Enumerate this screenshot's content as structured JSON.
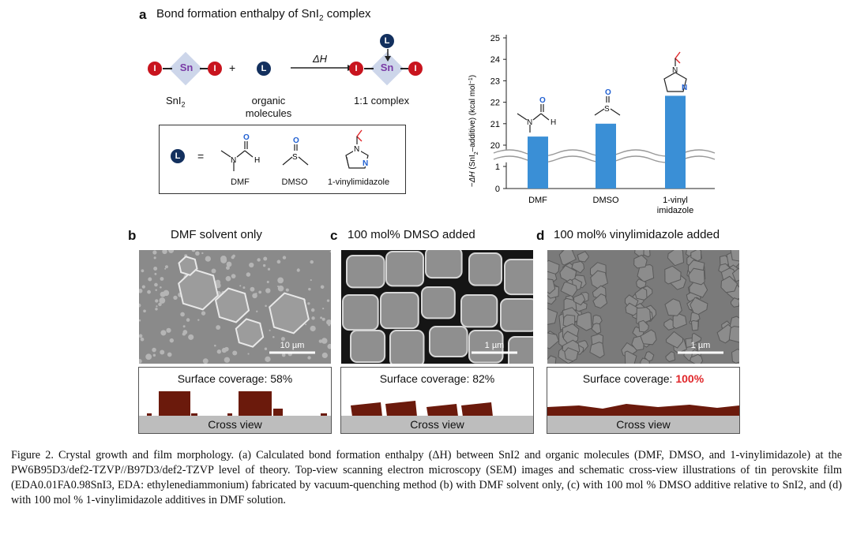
{
  "panel_a": {
    "letter": "a",
    "title": "Bond formation enthalpy of SnI",
    "title_sub": "2",
    "title_after": " complex",
    "scheme": {
      "atom_I": "I",
      "atom_Sn": "Sn",
      "atom_L": "L",
      "plus": "+",
      "arrow_label": "ΔH",
      "snI2_label": "SnI",
      "snI2_sub": "2",
      "organic_label_1": "organic",
      "organic_label_2": "molecules",
      "complex_label": "1:1 complex",
      "equals": "=",
      "mol_dmf": "DMF",
      "mol_dmso": "DMSO",
      "mol_vinyl": "1-vinylimidazole",
      "atom_O": "O",
      "atom_S": "S",
      "atom_N": "N",
      "atom_H": "H"
    }
  },
  "chart_data": {
    "type": "bar",
    "categories": [
      "DMF",
      "DMSO",
      "1-vinyl imidazole"
    ],
    "category_lines": [
      [
        "DMF"
      ],
      [
        "DMSO"
      ],
      [
        "1-vinyl",
        "imidazole"
      ]
    ],
    "values": [
      20.4,
      21.0,
      22.3
    ],
    "ylabel": "−ΔH (SnI2–additive) (kcal mol⁻¹)",
    "ylabel_parts": [
      "−",
      "ΔH",
      " (SnI",
      "2",
      "–additive) (kcal mol",
      "−1",
      ")"
    ],
    "yticks_upper": [
      20,
      21,
      22,
      23,
      24,
      25
    ],
    "yticks_lower": [
      0,
      1
    ],
    "axis_break": true,
    "bar_color": "#3a8fd6"
  },
  "panels": [
    {
      "letter": "b",
      "title": "DMF solvent only",
      "scale": "10 µm",
      "coverage_label": "Surface coverage: ",
      "coverage_value": "58%",
      "coverage_color": "#111111",
      "cross": "Cross view"
    },
    {
      "letter": "c",
      "title": "100 mol% DMSO added",
      "scale": "1 µm",
      "coverage_label": "Surface coverage: ",
      "coverage_value": "82%",
      "coverage_color": "#111111",
      "cross": "Cross view"
    },
    {
      "letter": "d",
      "title": "100 mol% vinylimidazole added",
      "scale": "1 µm",
      "coverage_label": "Surface coverage: ",
      "coverage_value": "100%",
      "coverage_color": "#e0262a",
      "cross": "Cross view"
    }
  ],
  "caption": {
    "text": "Figure 2. Crystal growth and film morphology. (a) Calculated bond formation enthalpy (ΔH) between SnI2 and organic molecules (DMF, DMSO, and 1-vinylimidazole) at the PW6B95D3/def2-TZVP//B97D3/def2-TZVP level of theory. Top-view scanning electron microscopy (SEM) images and schematic cross-view illustrations of tin perovskite film (EDA0.01FA0.98SnI3, EDA: ethylenediammonium) fabricated by vacuum-quenching method (b) with DMF solvent only, (c) with 100 mol % DMSO additive relative to SnI2, and (d) with 100 mol % 1-vinylimidazole additives in DMF solution."
  },
  "colors": {
    "iodine": "#c8141e",
    "ligand": "#13305e",
    "sn_diamond": "#cdd6ea",
    "crystal": "#6b1a0c",
    "substrate": "#bdbdbd"
  }
}
